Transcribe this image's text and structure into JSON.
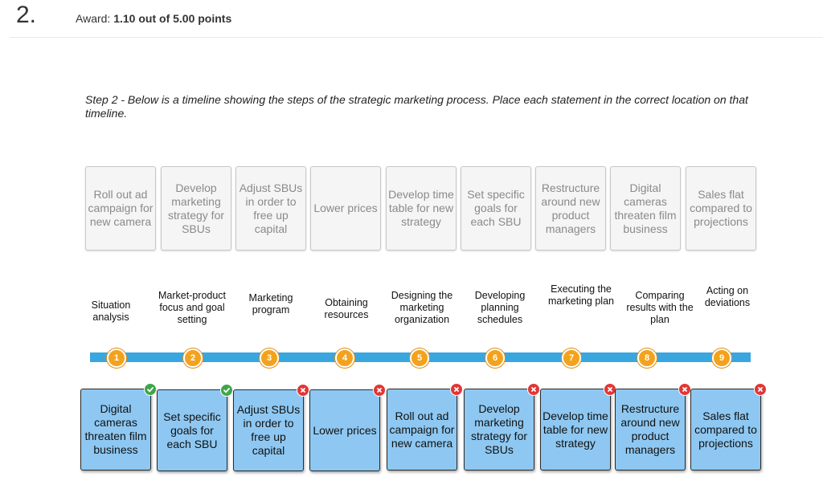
{
  "question": {
    "number": "2.",
    "award_prefix": "Award:",
    "award_value": "1.10 out of 5.00 points"
  },
  "instructions": "Step 2 - Below is a timeline showing the steps of the strategic marketing process. Place each statement in the correct location on that timeline.",
  "source_cards": [
    {
      "label": "Roll out ad campaign for new camera"
    },
    {
      "label": "Develop marketing strategy for SBUs"
    },
    {
      "label": "Adjust SBUs in order to free up capital"
    },
    {
      "label": "Lower prices"
    },
    {
      "label": "Develop time table for new strategy"
    },
    {
      "label": "Set specific goals for each SBU"
    },
    {
      "label": "Restructure around new product managers"
    },
    {
      "label": "Digital cameras threaten film business"
    },
    {
      "label": "Sales flat compared to projections"
    }
  ],
  "timeline_steps": [
    {
      "number": "1",
      "label": "Situation\nanalysis"
    },
    {
      "number": "2",
      "label": "Market-product\nfocus and goal\nsetting"
    },
    {
      "number": "3",
      "label": "Marketing\nprogram"
    },
    {
      "number": "4",
      "label": "Obtaining\nresources"
    },
    {
      "number": "5",
      "label": "Designing the\nmarketing\norganization"
    },
    {
      "number": "6",
      "label": "Developing\nplanning\nschedules"
    },
    {
      "number": "7",
      "label": "Executing the\nmarketing plan"
    },
    {
      "number": "8",
      "label": "Comparing\nresults with the\nplan"
    },
    {
      "number": "9",
      "label": "Acting on\ndeviations"
    }
  ],
  "placed_cards": [
    {
      "label": "Digital cameras threaten film business",
      "status": "correct"
    },
    {
      "label": "Set specific goals for each SBU",
      "status": "correct"
    },
    {
      "label": "Adjust SBUs in order to free up capital",
      "status": "incorrect"
    },
    {
      "label": "Lower prices",
      "status": "incorrect"
    },
    {
      "label": "Roll out ad campaign for new camera",
      "status": "incorrect"
    },
    {
      "label": "Develop marketing strategy for SBUs",
      "status": "incorrect"
    },
    {
      "label": "Develop time table for new strategy",
      "status": "incorrect"
    },
    {
      "label": "Restructure around new product managers",
      "status": "incorrect"
    },
    {
      "label": "Sales flat compared to projections",
      "status": "incorrect"
    }
  ],
  "colors": {
    "timeline": "#3aa6df",
    "marker": "#f3a21e",
    "drop_card": "#8ec8f2",
    "correct": "#3ea64a",
    "incorrect": "#e23636"
  },
  "icons": {
    "correct": "check-icon",
    "incorrect": "x-icon"
  }
}
